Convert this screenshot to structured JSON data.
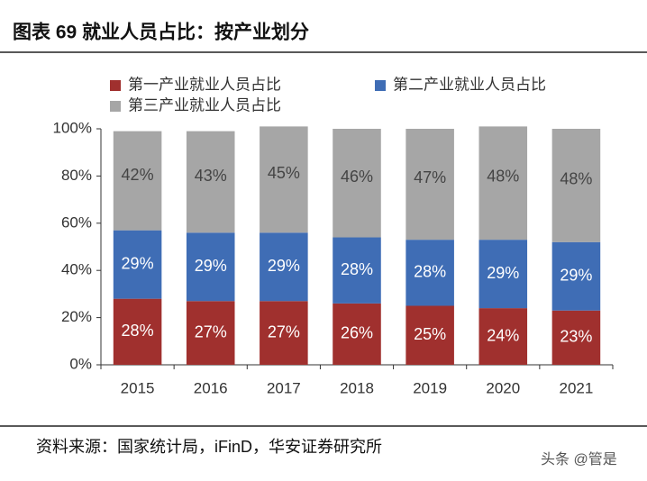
{
  "chart_data": {
    "type": "bar",
    "stacked": true,
    "title": "图表 69 就业人员占比：按产业划分",
    "source": "资料来源：国家统计局，iFinD，华安证券研究所",
    "watermark": "头条 @管是",
    "categories": [
      "2015",
      "2016",
      "2017",
      "2018",
      "2019",
      "2020",
      "2021"
    ],
    "series": [
      {
        "name": "第一产业就业人员占比",
        "color": "#a0302e",
        "values": [
          28,
          27,
          27,
          26,
          25,
          24,
          23
        ],
        "value_labels": [
          "28%",
          "27%",
          "27%",
          "26%",
          "25%",
          "24%",
          "23%"
        ]
      },
      {
        "name": "第二产业就业人员占比",
        "color": "#3f6db5",
        "values": [
          29,
          29,
          29,
          28,
          28,
          29,
          29
        ],
        "value_labels": [
          "29%",
          "29%",
          "29%",
          "28%",
          "28%",
          "29%",
          "29%"
        ]
      },
      {
        "name": "第三产业就业人员占比",
        "color": "#a6a6a6",
        "values": [
          42,
          43,
          45,
          46,
          47,
          48,
          48
        ],
        "value_labels": [
          "42%",
          "43%",
          "45%",
          "46%",
          "47%",
          "48%",
          "48%"
        ]
      }
    ],
    "ylim": [
      0,
      100
    ],
    "yticks": [
      {
        "value": 0,
        "label": "0%"
      },
      {
        "value": 20,
        "label": "20%"
      },
      {
        "value": 40,
        "label": "40%"
      },
      {
        "value": 60,
        "label": "60%"
      },
      {
        "value": 80,
        "label": "80%"
      },
      {
        "value": 100,
        "label": "100%"
      }
    ]
  }
}
